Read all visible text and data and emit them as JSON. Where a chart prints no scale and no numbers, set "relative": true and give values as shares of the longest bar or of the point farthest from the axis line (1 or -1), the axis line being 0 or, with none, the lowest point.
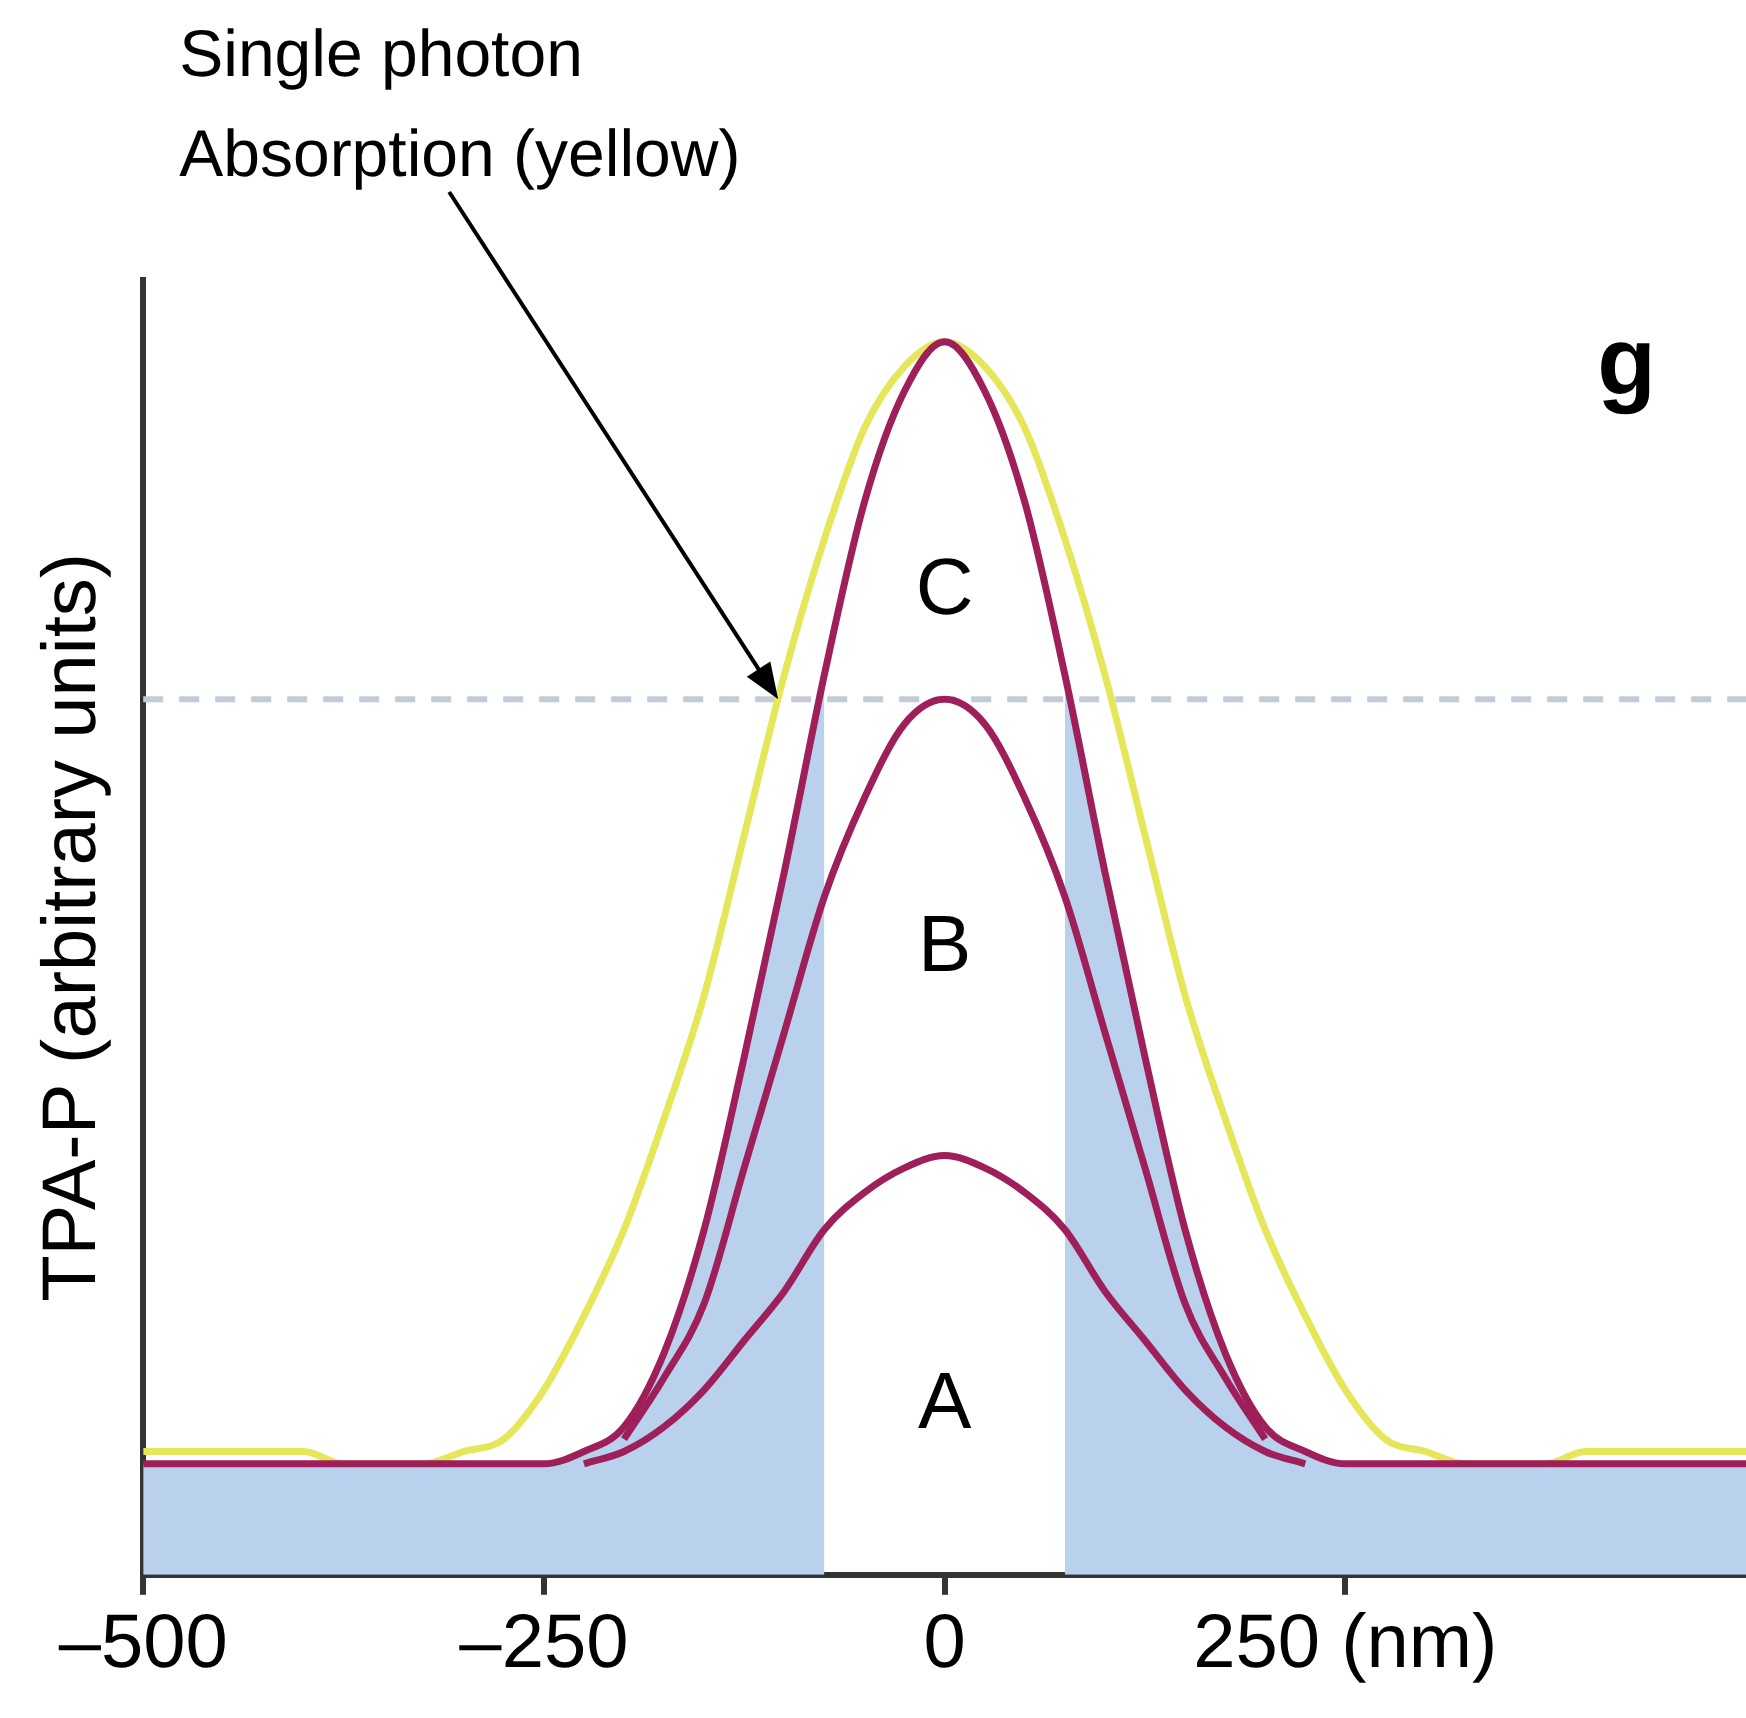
{
  "chart_data": {
    "type": "line",
    "relative": true,
    "ylabel": "TPA-P (arbitrary units)",
    "x": [
      -500,
      -475,
      -450,
      -425,
      -400,
      -375,
      -350,
      -325,
      -300,
      -275,
      -250,
      -225,
      -200,
      -175,
      -150,
      -125,
      -100,
      -75,
      -50,
      -25,
      0,
      25,
      50,
      75,
      100,
      125,
      150,
      175,
      200,
      225,
      250,
      275,
      300,
      325,
      350,
      375,
      400,
      425,
      450,
      475,
      500
    ],
    "xlim": [
      -500,
      500
    ],
    "xticks": [
      {
        "value": -500,
        "label": "–500"
      },
      {
        "value": -250,
        "label": "–250"
      },
      0,
      {
        "value": 250,
        "label": "250 (nm)"
      }
    ],
    "series": [
      {
        "type": "area",
        "color": "#b9d1ec",
        "values": [
          0.09,
          0.09,
          0.09,
          0.09,
          0.09,
          0.09,
          0.09,
          0.09,
          0.09,
          0.09,
          0.09,
          0.1,
          0.12,
          0.18,
          0.28,
          0.42,
          0.57,
          0.73,
          null,
          null,
          null,
          null,
          null,
          0.73,
          0.57,
          0.42,
          0.28,
          0.18,
          0.12,
          0.1,
          0.09,
          0.09,
          0.09,
          0.09,
          0.09,
          0.09,
          0.09,
          0.09,
          0.09,
          0.09,
          0.09
        ]
      },
      {
        "color": "#e6e65a",
        "values": [
          0.1,
          0.1,
          0.1,
          0.1,
          0.1,
          0.09,
          0.09,
          0.09,
          0.1,
          0.11,
          0.15,
          0.21,
          0.28,
          0.37,
          0.47,
          0.6,
          0.73,
          0.84,
          0.93,
          0.98,
          1.0,
          0.98,
          0.93,
          0.84,
          0.73,
          0.6,
          0.47,
          0.37,
          0.28,
          0.21,
          0.15,
          0.11,
          0.1,
          0.09,
          0.09,
          0.09,
          0.1,
          0.1,
          0.1,
          0.1,
          0.1
        ]
      },
      {
        "name": "C",
        "color": "#9e1f5a",
        "values": [
          0.09,
          0.09,
          0.09,
          0.09,
          0.09,
          0.09,
          0.09,
          0.09,
          0.09,
          0.09,
          0.09,
          0.1,
          0.12,
          0.18,
          0.28,
          0.42,
          0.57,
          0.73,
          0.87,
          0.96,
          1.0,
          0.96,
          0.87,
          0.73,
          0.57,
          0.42,
          0.28,
          0.18,
          0.12,
          0.1,
          0.09,
          0.09,
          0.09,
          0.09,
          0.09,
          0.09,
          0.09,
          0.09,
          0.09,
          0.09,
          0.09
        ]
      },
      {
        "name": "B",
        "color": "#9e1f5a",
        "values": [
          null,
          null,
          null,
          null,
          null,
          null,
          null,
          null,
          null,
          null,
          null,
          null,
          0.11,
          0.16,
          0.22,
          0.33,
          0.44,
          0.55,
          0.63,
          0.69,
          0.71,
          0.69,
          0.63,
          0.55,
          0.44,
          0.33,
          0.22,
          0.16,
          0.11,
          null,
          null,
          null,
          null,
          null,
          null,
          null,
          null,
          null,
          null,
          null,
          null
        ]
      },
      {
        "name": "A",
        "color": "#9e1f5a",
        "values": [
          null,
          null,
          null,
          null,
          null,
          null,
          null,
          null,
          null,
          null,
          null,
          0.09,
          0.1,
          0.12,
          0.15,
          0.19,
          0.23,
          0.28,
          0.31,
          0.33,
          0.34,
          0.33,
          0.31,
          0.28,
          0.23,
          0.19,
          0.15,
          0.12,
          0.1,
          0.09,
          null,
          null,
          null,
          null,
          null,
          null,
          null,
          null,
          null,
          null,
          null
        ]
      }
    ],
    "ref_lines": [
      {
        "axis": "y",
        "value": 0.71,
        "color": "#c3cbd8",
        "line_style": "dashed"
      }
    ],
    "annotations": [
      "Single photon Absorption (yellow)",
      "g"
    ],
    "legend": false,
    "grid": false,
    "marker": "none",
    "line_style": "solid"
  }
}
